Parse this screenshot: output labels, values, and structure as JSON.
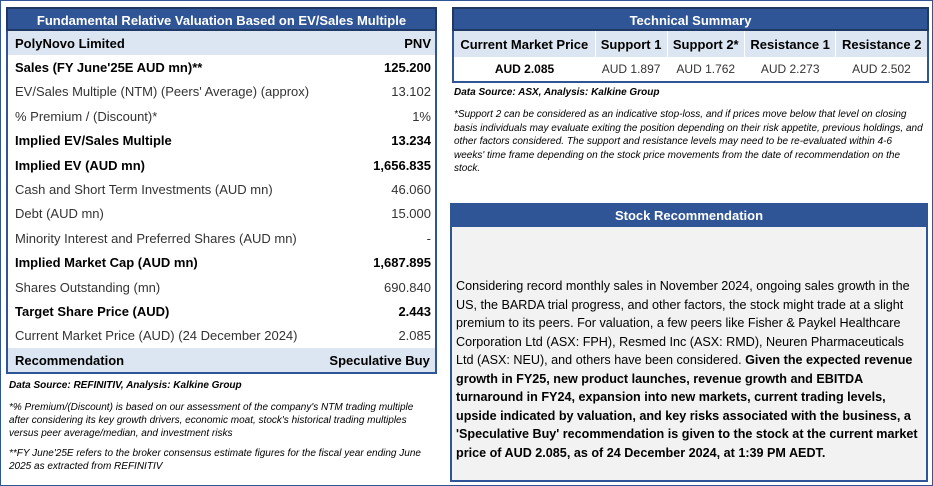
{
  "valuation": {
    "title": "Fundamental Relative Valuation Based on EV/Sales Multiple",
    "company": "PolyNovo Limited",
    "ticker": "PNV",
    "rows": [
      {
        "label": "Sales (FY June'25E AUD mn)**",
        "value": "125.200"
      },
      {
        "label": "EV/Sales Multiple (NTM)  (Peers' Average) (approx)",
        "value": "13.102"
      },
      {
        "label": "% Premium / (Discount)*",
        "value": "1%"
      },
      {
        "label": "Implied EV/Sales Multiple",
        "value": "13.234"
      },
      {
        "label": "Implied EV (AUD mn)",
        "value": "1,656.835"
      },
      {
        "label": "Cash and Short Term Investments (AUD mn)",
        "value": "46.060"
      },
      {
        "label": "Debt (AUD mn)",
        "value": "15.000"
      },
      {
        "label": "Minority Interest and Preferred Shares (AUD mn)",
        "value": "-"
      },
      {
        "label": "Implied Market Cap (AUD mn)",
        "value": "1,687.895"
      },
      {
        "label": "Shares Outstanding (mn)",
        "value": "690.840"
      },
      {
        "label": "Target Share Price (AUD)",
        "value": "2.443"
      },
      {
        "label": "Current Market Price (AUD) (24 December 2024)",
        "value": "2.085"
      },
      {
        "label": "Recommendation",
        "value": "Speculative Buy"
      }
    ],
    "source": "Data Source: REFINITIV, Analysis: Kalkine Group",
    "note1": "*% Premium/(Discount) is based on our assessment of the company's NTM trading multiple after considering its key growth drivers, economic moat, stock's historical trading multiples versus peer average/median, and investment risks",
    "note2": "**FY June'25E refers to the broker consensus estimate figures for the fiscal year ending June 2025 as extracted from REFINITIV"
  },
  "technical": {
    "title": "Technical Summary",
    "headers": [
      "Current Market Price",
      "Support 1",
      "Support 2*",
      "Resistance 1",
      "Resistance 2"
    ],
    "values": [
      "AUD 2.085",
      "AUD 1.897",
      "AUD 1.762",
      "AUD 2.273",
      "AUD 2.502"
    ],
    "source": "Data Source: ASX, Analysis: Kalkine Group",
    "note": "*Support 2 can be considered as an indicative stop-loss, and if prices move below that level on closing basis individuals may evaluate exiting the position depending on their risk appetite, previous holdings, and other factors considered. The support and resistance levels may need to be re-evaluated within 4-6 weeks' time frame depending on the stock price movements from the date of recommendation on the stock."
  },
  "recommendation": {
    "title": "Stock Recommendation",
    "text_plain": "Considering record monthly sales in November 2024, ongoing sales growth in the US, the BARDA trial progress, and other factors, the stock might trade at a slight premium to its peers. For valuation, a few peers like Fisher & Paykel Healthcare Corporation Ltd (ASX: FPH), Resmed Inc (ASX: RMD), Neuren Pharmaceuticals Ltd  (ASX: NEU), and others have been considered. ",
    "text_bold": "Given the expected revenue growth in FY25, new product launches, revenue growth and EBITDA turnaround in FY24, expansion into new markets, current trading levels, upside indicated by valuation, and key risks associated with the business, a 'Speculative Buy' recommendation is given to the stock at the current market price of AUD 2.085, as of 24 December 2024, at 1:39 PM AEDT."
  }
}
